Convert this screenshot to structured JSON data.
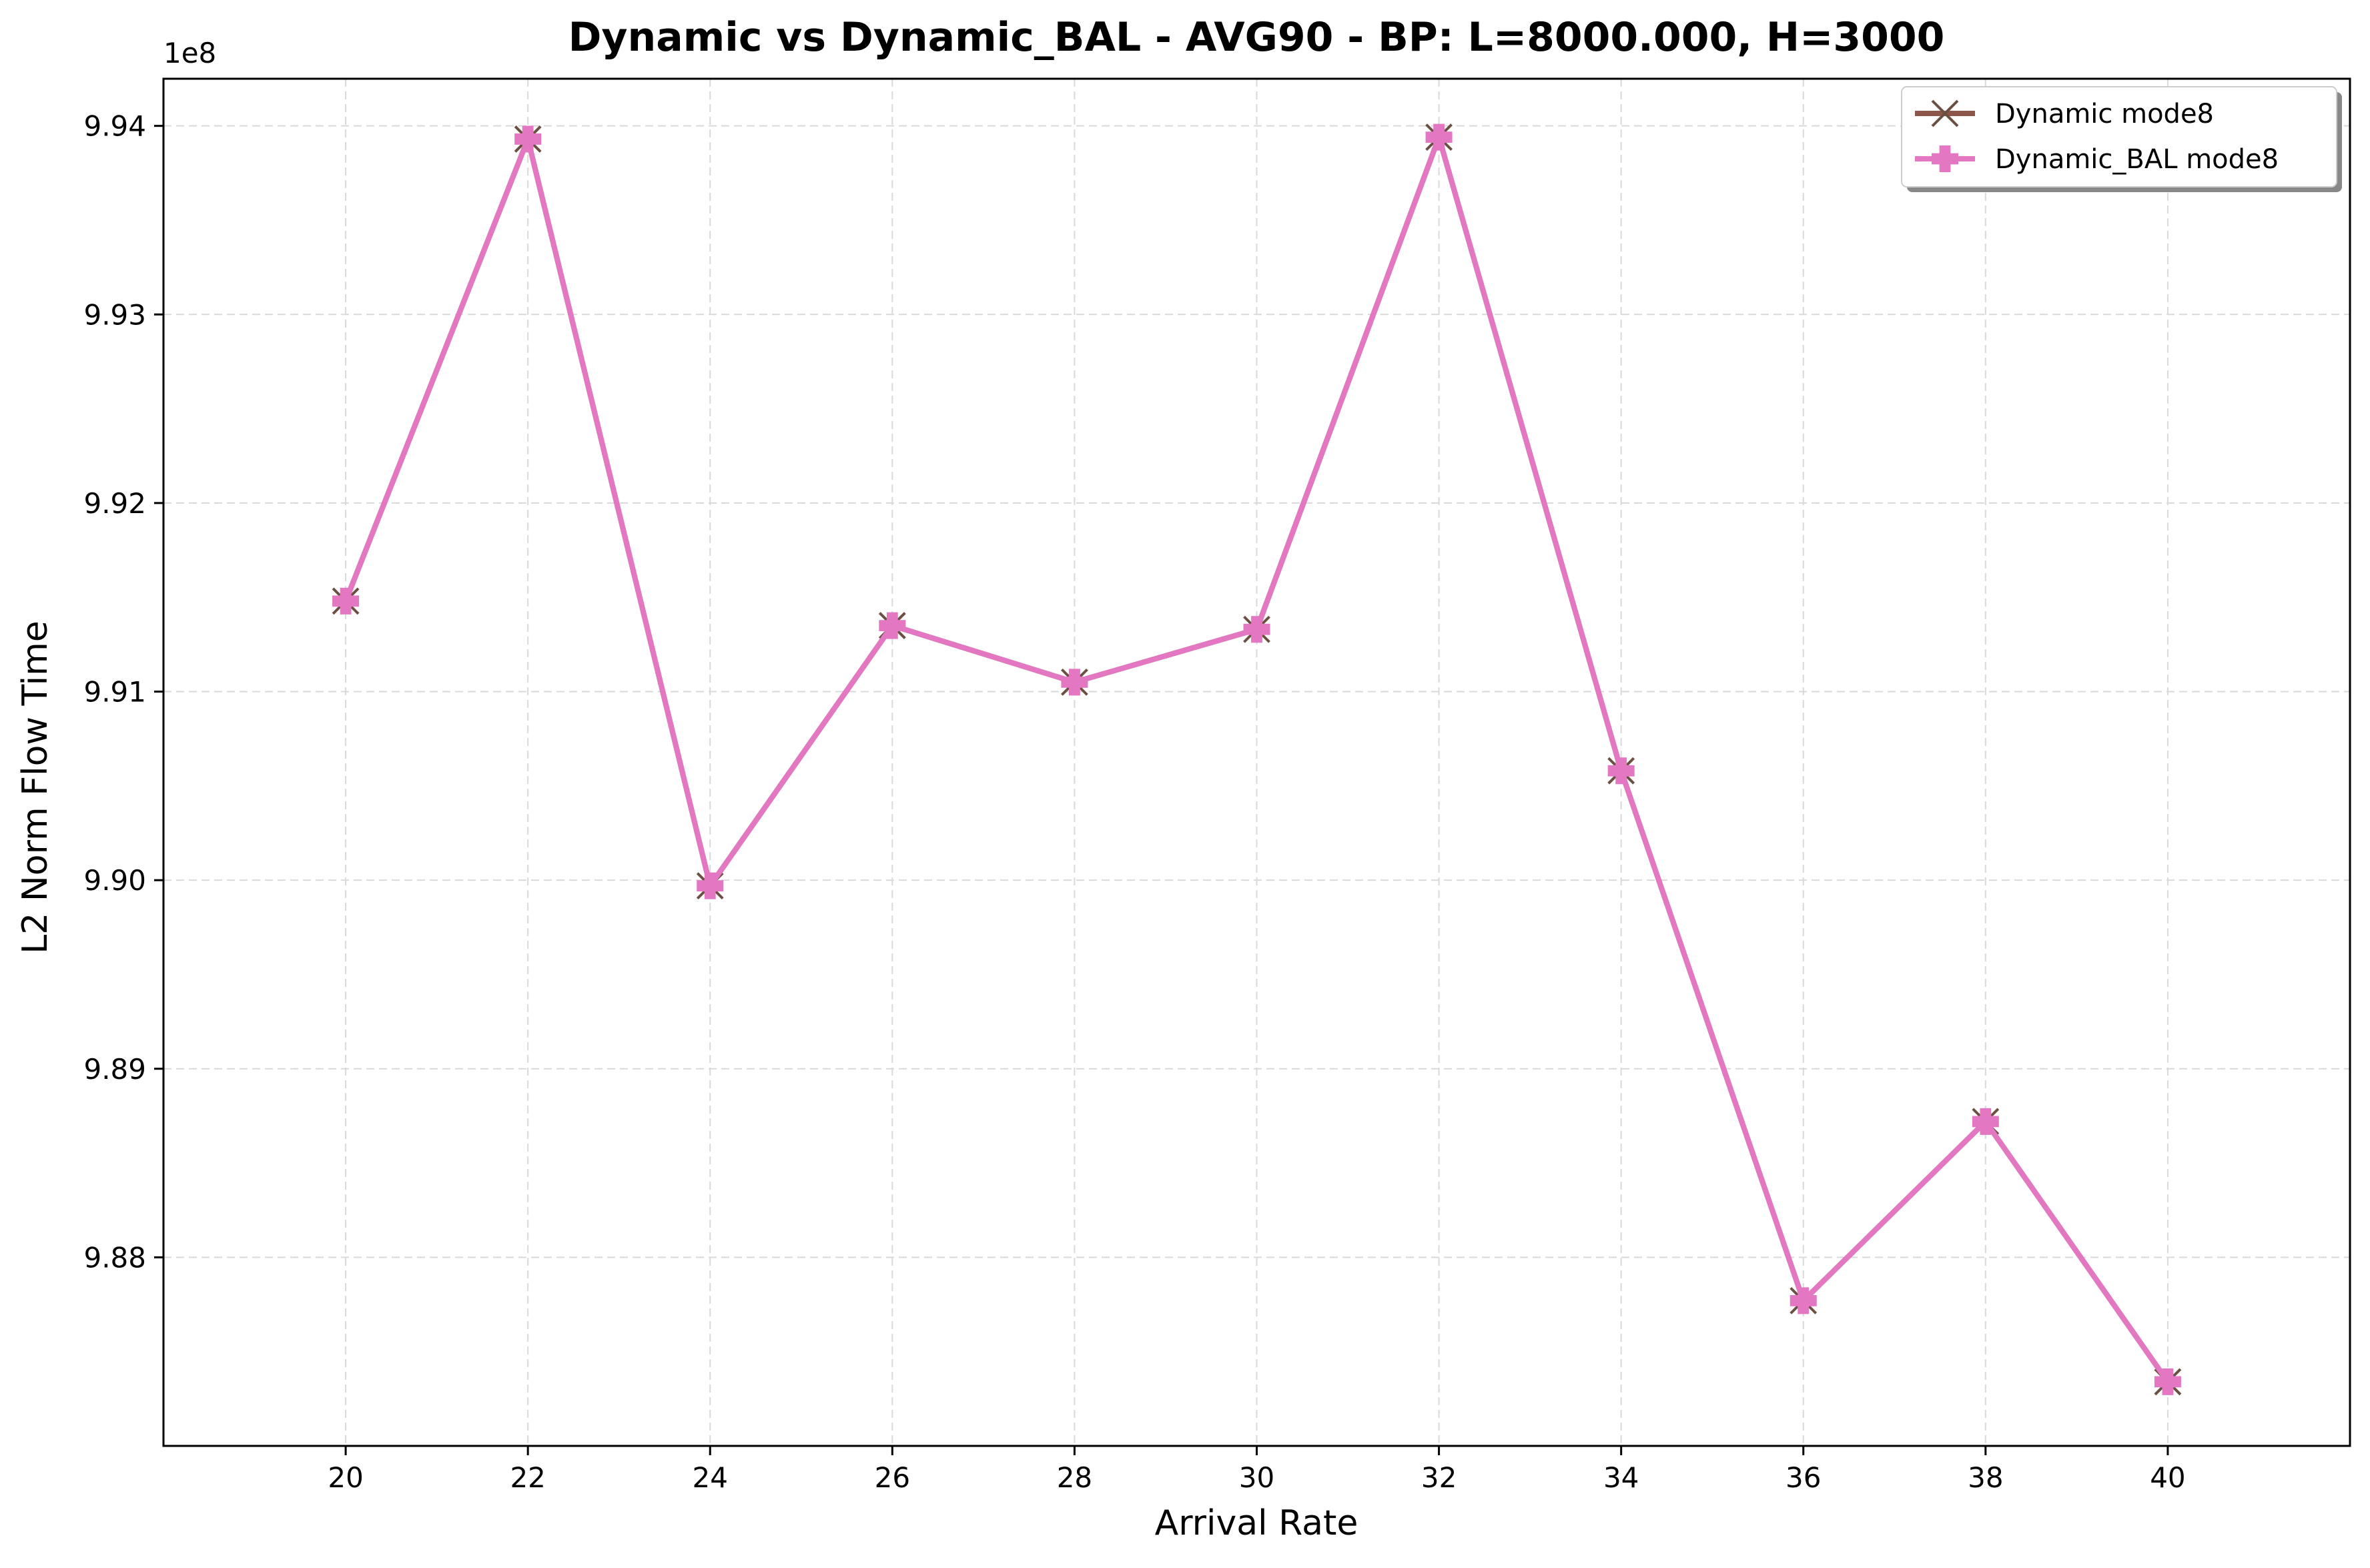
{
  "chart_data": {
    "type": "line",
    "title": "Dynamic vs Dynamic_BAL - AVG90 - BP: L=8000.000, H=3000",
    "xlabel": "Arrival Rate",
    "ylabel": "L2 Norm Flow Time",
    "y_offset_label": "1e8",
    "y_scale_factor": 100000000,
    "x": [
      20,
      22,
      24,
      26,
      28,
      30,
      32,
      34,
      36,
      38,
      40
    ],
    "xlim": [
      18,
      42
    ],
    "ylim": [
      987.0,
      994.25
    ],
    "x_ticks": [
      20,
      22,
      24,
      26,
      28,
      30,
      32,
      34,
      36,
      38,
      40
    ],
    "y_ticks": [
      988,
      989,
      990,
      991,
      992,
      993,
      994
    ],
    "y_tick_labels": [
      "9.88",
      "9.89",
      "9.90",
      "9.91",
      "9.92",
      "9.93",
      "9.94"
    ],
    "grid": true,
    "legend_position": "top-right",
    "series": [
      {
        "name": "Dynamic mode8",
        "color": "#8c564b",
        "marker": "x",
        "values": [
          991.48,
          993.93,
          989.97,
          991.35,
          991.05,
          991.33,
          993.94,
          990.58,
          987.77,
          988.72,
          987.34
        ]
      },
      {
        "name": "Dynamic_BAL mode8",
        "color": "#e377c2",
        "marker": "P",
        "values": [
          991.48,
          993.93,
          989.97,
          991.35,
          991.05,
          991.33,
          993.94,
          990.58,
          987.77,
          988.72,
          987.34
        ]
      }
    ]
  }
}
